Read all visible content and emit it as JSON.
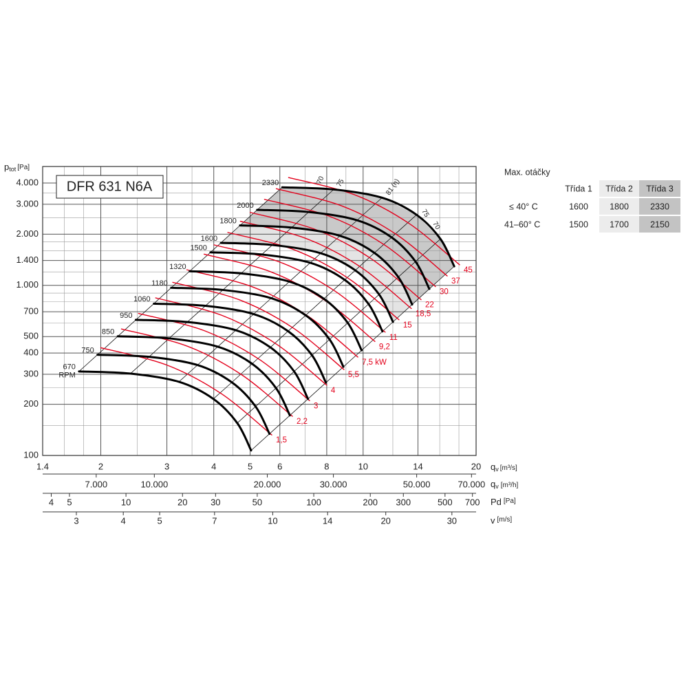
{
  "chart_data": {
    "type": "line",
    "title": "DFR 631 N6A",
    "y_label": {
      "main": "p",
      "sub": "tot",
      "unit": "[Pa]"
    },
    "x_label": {
      "main": "q",
      "sub": "v",
      "unit": "[m³/s]"
    },
    "xscale": "log",
    "yscale": "log",
    "grid": true,
    "xlim": [
      1.4,
      20
    ],
    "ylim": [
      100,
      5000
    ],
    "xticks": [
      1.4,
      2,
      3,
      4,
      5,
      6,
      8,
      10,
      14,
      20
    ],
    "xminor": [
      1.6,
      1.8,
      2.5,
      3.5,
      4.5,
      7,
      9,
      12,
      16,
      18
    ],
    "yticks": [
      {
        "value": 100,
        "label": "100"
      },
      {
        "value": 200,
        "label": "200"
      },
      {
        "value": 300,
        "label": "300"
      },
      {
        "value": 400,
        "label": "400"
      },
      {
        "value": 500,
        "label": "500"
      },
      {
        "value": 700,
        "label": "700"
      },
      {
        "value": 1000,
        "label": "1.000"
      },
      {
        "value": 1400,
        "label": "1.400"
      },
      {
        "value": 2000,
        "label": "2.000"
      },
      {
        "value": 3000,
        "label": "3.000"
      },
      {
        "value": 4000,
        "label": "4.000"
      }
    ],
    "yminor": [
      150,
      250,
      600,
      800,
      900,
      1200,
      1600,
      1800,
      2500,
      3500
    ],
    "rpm_unit": "RPM",
    "series": [
      {
        "name": "670",
        "color": "#000000",
        "x": [
          1.75,
          2.4,
          3.23,
          3.99,
          4.62,
          5.03
        ],
        "y": [
          312,
          303,
          271,
          215,
          155,
          107
        ]
      },
      {
        "name": "750",
        "color": "#000000",
        "x": [
          1.96,
          2.69,
          3.62,
          4.47,
          5.17,
          5.63
        ],
        "y": [
          391,
          380,
          340,
          269,
          194,
          134
        ]
      },
      {
        "name": "850",
        "color": "#000000",
        "x": [
          2.22,
          3.04,
          4.1,
          5.06,
          5.86,
          6.38
        ],
        "y": [
          502,
          488,
          436,
          346,
          249,
          172
        ]
      },
      {
        "name": "950",
        "color": "#000000",
        "x": [
          2.48,
          3.4,
          4.58,
          5.66,
          6.55,
          7.13
        ],
        "y": [
          627,
          609,
          545,
          432,
          312,
          215
        ]
      },
      {
        "name": "1060",
        "color": "#000000",
        "x": [
          2.77,
          3.8,
          5.11,
          6.31,
          7.31,
          7.96
        ],
        "y": [
          781,
          758,
          678,
          538,
          388,
          268
        ]
      },
      {
        "name": "1180",
        "color": "#000000",
        "x": [
          3.08,
          4.23,
          5.69,
          7.03,
          8.14,
          8.86
        ],
        "y": [
          968,
          940,
          841,
          667,
          481,
          332
        ]
      },
      {
        "name": "1320",
        "color": "#000000",
        "x": [
          3.45,
          4.73,
          6.36,
          7.86,
          9.1,
          9.91
        ],
        "y": [
          1211,
          1176,
          1052,
          834,
          602,
          415
        ]
      },
      {
        "name": "1500",
        "color": "#000000",
        "x": [
          3.92,
          5.37,
          7.23,
          8.93,
          10.34,
          11.26
        ],
        "y": [
          1564,
          1519,
          1358,
          1078,
          777,
          536
        ]
      },
      {
        "name": "1600",
        "color": "#000000",
        "x": [
          4.18,
          5.73,
          7.71,
          9.53,
          11.03,
          12.01
        ],
        "y": [
          1779,
          1728,
          1545,
          1226,
          884,
          610
        ]
      },
      {
        "name": "1800",
        "color": "#000000",
        "x": [
          4.7,
          6.45,
          8.68,
          10.72,
          12.41,
          13.51
        ],
        "y": [
          2252,
          2187,
          1956,
          1552,
          1119,
          772
        ]
      },
      {
        "name": "2000",
        "color": "#000000",
        "x": [
          5.22,
          7.16,
          9.64,
          11.91,
          13.79,
          15.01
        ],
        "y": [
          2780,
          2700,
          2415,
          1916,
          1381,
          953
        ]
      },
      {
        "name": "2330",
        "color": "#000000",
        "x": [
          6.09,
          8.35,
          11.23,
          13.88,
          16.07,
          17.49
        ],
        "y": [
          3773,
          3664,
          3277,
          2600,
          1875,
          1294
        ]
      }
    ],
    "power_curves": [
      {
        "name": "1,5",
        "color": "#e3001b",
        "x": [
          2.0,
          3.0,
          4.2,
          5.71
        ],
        "y": [
          430,
          340,
          230,
          132
        ]
      },
      {
        "name": "2,2",
        "color": "#e3001b",
        "x": [
          2.27,
          3.41,
          4.77,
          6.48
        ],
        "y": [
          554,
          438,
          296,
          170
        ]
      },
      {
        "name": "3",
        "color": "#e3001b",
        "x": [
          2.52,
          3.78,
          5.3,
          7.2
        ],
        "y": [
          684,
          541,
          366,
          210
        ]
      },
      {
        "name": "4",
        "color": "#e3001b",
        "x": [
          2.8,
          4.2,
          5.88,
          8.0
        ],
        "y": [
          844,
          667,
          451,
          259
        ]
      },
      {
        "name": "5,5",
        "color": "#e3001b",
        "x": [
          3.11,
          4.67,
          6.54,
          8.89
        ],
        "y": [
          1042,
          824,
          558,
          320
        ]
      },
      {
        "name": "7,5 kW",
        "color": "#e3001b",
        "x": [
          3.39,
          5.09,
          7.12,
          9.68
        ],
        "y": [
          1235,
          977,
          661,
          379
        ]
      },
      {
        "name": "9,2",
        "color": "#e3001b",
        "x": [
          3.77,
          5.65,
          7.91,
          10.75
        ],
        "y": [
          1525,
          1206,
          816,
          468
        ]
      },
      {
        "name": "11",
        "color": "#e3001b",
        "x": [
          4.01,
          6.02,
          8.42,
          11.45
        ],
        "y": [
          1729,
          1367,
          925,
          531
        ]
      },
      {
        "name": "15",
        "color": "#e3001b",
        "x": [
          4.36,
          6.55,
          9.16,
          12.46
        ],
        "y": [
          2047,
          1619,
          1095,
          628
        ]
      },
      {
        "name": "18,5",
        "color": "#e3001b",
        "x": [
          4.71,
          7.06,
          9.89,
          13.44
        ],
        "y": [
          2383,
          1884,
          1274,
          731
        ]
      },
      {
        "name": "22",
        "color": "#e3001b",
        "x": [
          5.0,
          7.5,
          10.5,
          14.27
        ],
        "y": [
          2685,
          2123,
          1436,
          824
        ]
      },
      {
        "name": "30",
        "color": "#e3001b",
        "x": [
          5.46,
          8.19,
          11.47,
          15.59
        ],
        "y": [
          3205,
          2534,
          1714,
          984
        ]
      },
      {
        "name": "37",
        "color": "#e3001b",
        "x": [
          5.87,
          8.8,
          12.32,
          16.75
        ],
        "y": [
          3699,
          2925,
          1979,
          1136
        ]
      },
      {
        "name": "45",
        "color": "#e3001b",
        "x": [
          6.33,
          9.5,
          13.29,
          18.07
        ],
        "y": [
          4307,
          3406,
          2304,
          1322
        ]
      }
    ],
    "efficiency_labels": [
      "70",
      "75",
      "81 (η)",
      "75",
      "70"
    ],
    "secondary_axes": [
      {
        "main": "q",
        "sub": "v",
        "unit": "[m³/h]",
        "lim": [
          5040,
          72000
        ],
        "ticks": [
          {
            "value": 7000,
            "label": "7.000"
          },
          {
            "value": 10000,
            "label": "10.000"
          },
          {
            "value": 20000,
            "label": "20.000"
          },
          {
            "value": 30000,
            "label": "30.000"
          },
          {
            "value": 50000,
            "label": "50.000"
          },
          {
            "value": 70000,
            "label": "70.000"
          }
        ]
      },
      {
        "main": "Pd",
        "sub": "",
        "unit": "[Pa]",
        "lim": [
          3.6,
          732
        ],
        "ticks": [
          4,
          5,
          10,
          20,
          30,
          50,
          100,
          200,
          300,
          500,
          700
        ]
      },
      {
        "main": "v",
        "sub": "",
        "unit": "[m/s]",
        "lim": [
          2.44,
          34.8
        ],
        "ticks": [
          3,
          4,
          5,
          7,
          10,
          14,
          20,
          30
        ]
      }
    ]
  },
  "table": {
    "title": "Max. otáčky",
    "header": [
      "Třída 1",
      "Třída 2",
      "Třída 3"
    ],
    "rows": [
      {
        "label": "≤ 40° C",
        "cells": [
          "1600",
          "1800",
          "2330"
        ]
      },
      {
        "label": "41–60° C",
        "cells": [
          "1500",
          "1700",
          "2150"
        ]
      }
    ]
  }
}
